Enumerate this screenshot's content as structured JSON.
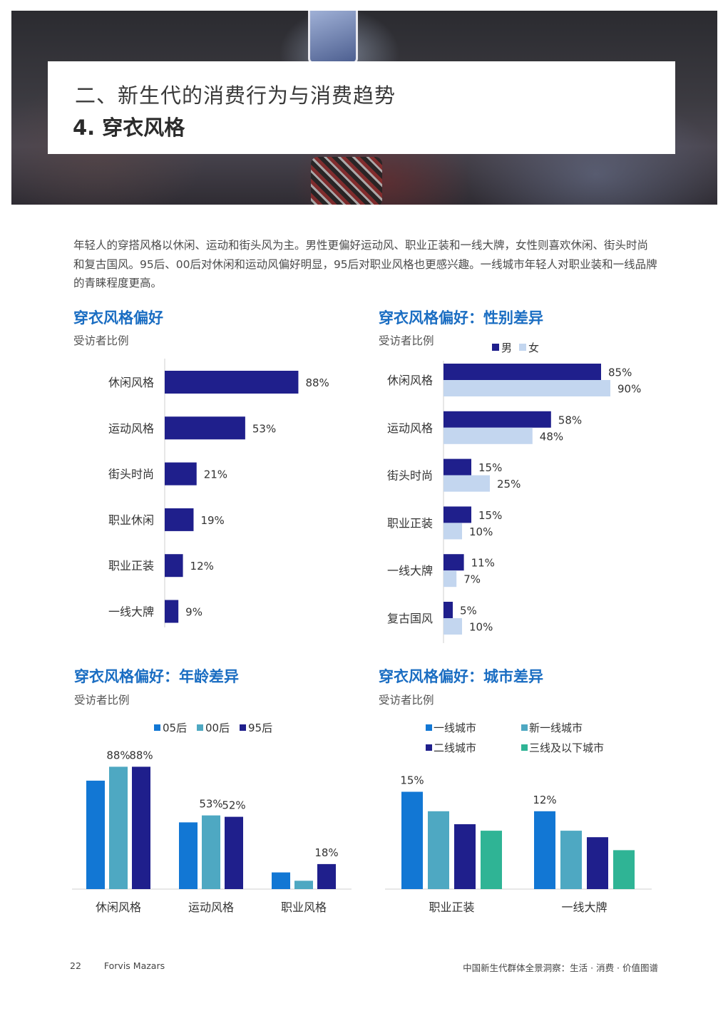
{
  "header": {
    "section_title": "二、新生代的消费行为与消费趋势",
    "subsection_title": "4. 穿衣风格"
  },
  "intro": "年轻人的穿搭风格以休闲、运动和街头风为主。男性更偏好运动风、职业正装和一线大牌，女性则喜欢休闲、街头时尚和复古国风。95后、00后对休闲和运动风偏好明显，95后对职业风格也更感兴趣。一线城市年轻人对职业装和一线品牌的青睐程度更高。",
  "colors": {
    "navy": "#1f1f8c",
    "light_blue": "#c3d6ef",
    "blue": "#1277d4",
    "teal": "#4ea8c2",
    "green": "#2fb495",
    "title_blue": "#1a6dc2"
  },
  "chart_data": [
    {
      "id": "overall",
      "type": "bar",
      "orientation": "horizontal",
      "title": "穿衣风格偏好",
      "subtitle": "受访者比例",
      "categories": [
        "休闲风格",
        "运动风格",
        "街头时尚",
        "职业休闲",
        "职业正装",
        "一线大牌"
      ],
      "values": [
        88,
        53,
        21,
        19,
        12,
        9
      ],
      "value_labels": [
        "88%",
        "53%",
        "21%",
        "19%",
        "12%",
        "9%"
      ],
      "unit": "%"
    },
    {
      "id": "gender",
      "type": "bar",
      "orientation": "horizontal",
      "title": "穿衣风格偏好：性别差异",
      "subtitle": "受访者比例",
      "legend": "top",
      "categories": [
        "休闲风格",
        "运动风格",
        "街头时尚",
        "职业正装",
        "一线大牌",
        "复古国风"
      ],
      "series": [
        {
          "name": "男",
          "values": [
            85,
            58,
            15,
            15,
            11,
            5
          ],
          "labels": [
            "85%",
            "58%",
            "15%",
            "15%",
            "11%",
            "5%"
          ]
        },
        {
          "name": "女",
          "values": [
            90,
            48,
            25,
            10,
            7,
            10
          ],
          "labels": [
            "90%",
            "48%",
            "25%",
            "10%",
            "7%",
            "10%"
          ]
        }
      ],
      "unit": "%"
    },
    {
      "id": "age",
      "type": "bar",
      "orientation": "vertical",
      "title": "穿衣风格偏好：年龄差异",
      "subtitle": "受访者比例",
      "legend": "top",
      "categories": [
        "休闲风格",
        "运动风格",
        "职业风格"
      ],
      "series": [
        {
          "name": "05后",
          "values": [
            78,
            48,
            12
          ],
          "labels": [
            "",
            "",
            ""
          ]
        },
        {
          "name": "00后",
          "values": [
            88,
            53,
            6
          ],
          "labels": [
            "88%",
            "53%",
            ""
          ]
        },
        {
          "name": "95后",
          "values": [
            88,
            52,
            18
          ],
          "labels": [
            "88%",
            "52%",
            "18%"
          ]
        }
      ],
      "unit": "%"
    },
    {
      "id": "city",
      "type": "bar",
      "orientation": "vertical",
      "title": "穿衣风格偏好：城市差异",
      "subtitle": "受访者比例",
      "legend": "top",
      "categories": [
        "职业正装",
        "一线大牌"
      ],
      "series": [
        {
          "name": "一线城市",
          "values": [
            15,
            12
          ],
          "labels": [
            "15%",
            "12%"
          ]
        },
        {
          "name": "新一线城市",
          "values": [
            12,
            9
          ],
          "labels": [
            "",
            ""
          ]
        },
        {
          "name": "二线城市",
          "values": [
            10,
            8
          ],
          "labels": [
            "",
            ""
          ]
        },
        {
          "name": "三线及以下城市",
          "values": [
            9,
            6
          ],
          "labels": [
            "",
            ""
          ]
        }
      ],
      "unit": "%"
    }
  ],
  "footer": {
    "page_number": "22",
    "brand": "Forvis Mazars",
    "report_title": "中国新生代群体全景洞察：生活 · 消费 · 价值图谱"
  }
}
